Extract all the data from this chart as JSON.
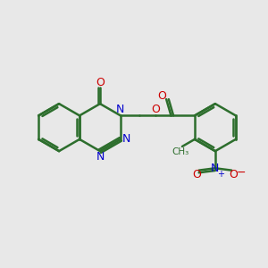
{
  "background_color": "#e8e8e8",
  "atom_color_N": "#0000cc",
  "atom_color_O": "#cc0000",
  "bond_color": "#2d6e2d",
  "bond_width": 1.8,
  "figsize": [
    3.0,
    3.0
  ],
  "dpi": 100,
  "xlim": [
    0,
    10
  ],
  "ylim": [
    0,
    10
  ]
}
